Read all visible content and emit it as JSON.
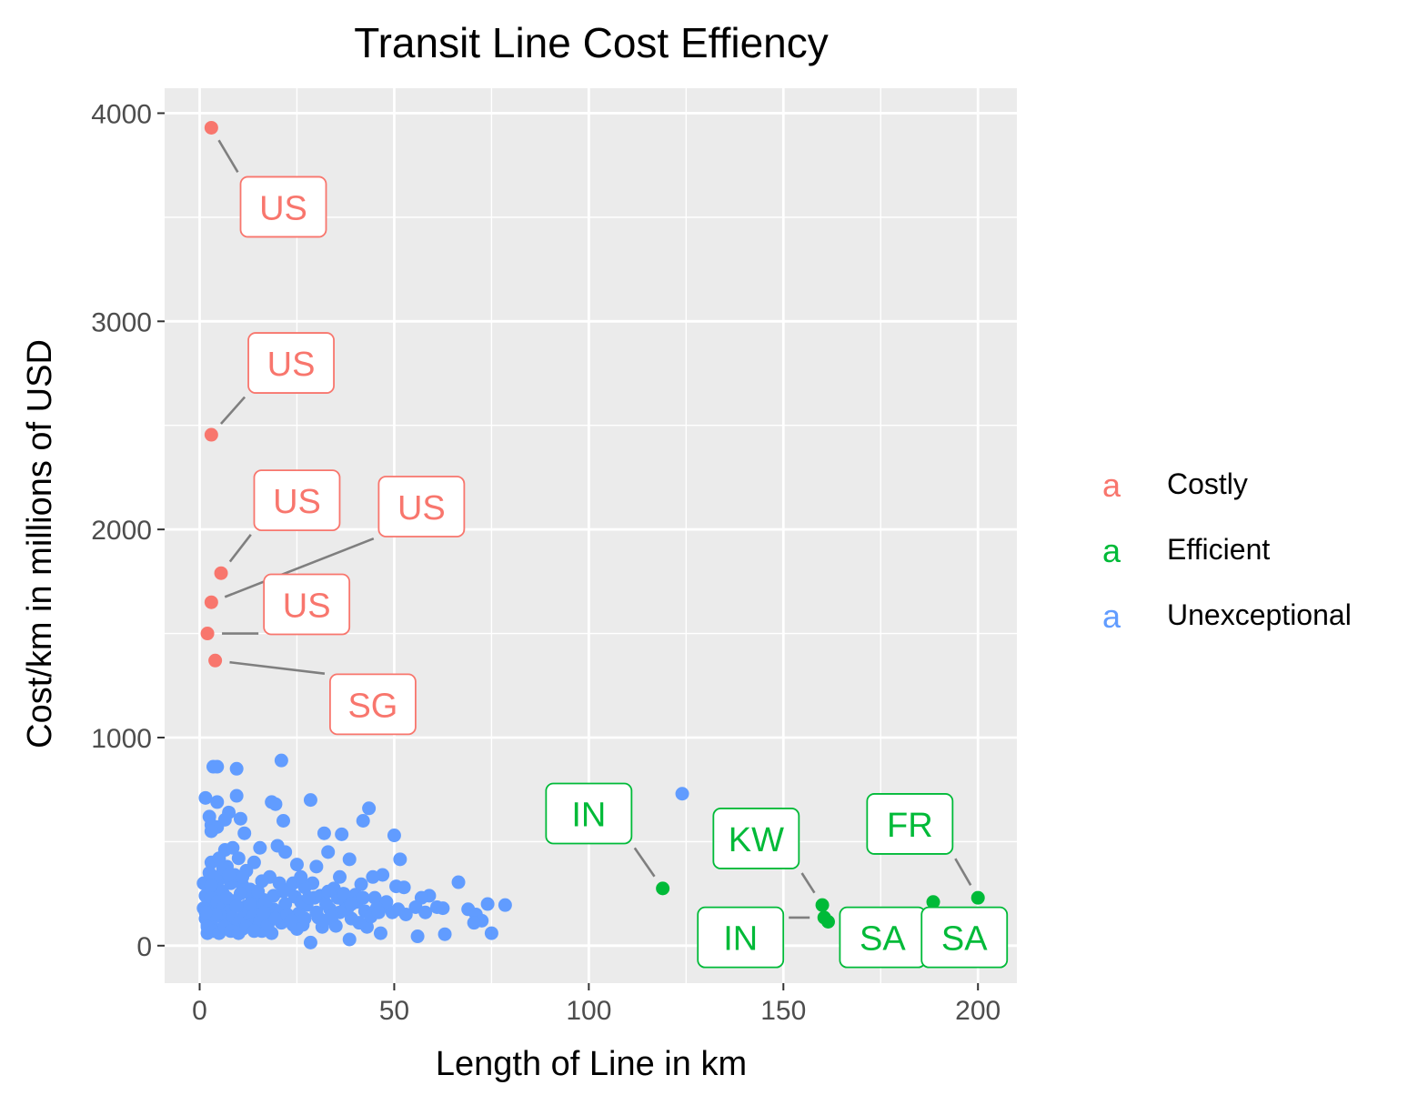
{
  "chart_data": {
    "type": "scatter",
    "title": "Transit Line Cost Effiency",
    "xlabel": "Length of Line in km",
    "ylabel": "Cost/km in millions of USD",
    "xlim": [
      -9,
      210
    ],
    "ylim": [
      -180,
      4120
    ],
    "x_ticks": [
      0,
      50,
      100,
      150,
      200
    ],
    "y_ticks": [
      0,
      1000,
      2000,
      3000,
      4000
    ],
    "grid": true,
    "legend_position": "right",
    "series": [
      {
        "name": "Costly",
        "color": "#F8766D",
        "points": [
          [
            3,
            3930
          ],
          [
            3,
            2455
          ],
          [
            5.5,
            1790
          ],
          [
            3,
            1650
          ],
          [
            2,
            1500
          ],
          [
            4,
            1370
          ]
        ]
      },
      {
        "name": "Efficient",
        "color": "#00BA38",
        "points": [
          [
            119,
            275
          ],
          [
            160,
            195
          ],
          [
            160.5,
            135
          ],
          [
            161.5,
            115
          ],
          [
            188.5,
            210
          ],
          [
            200,
            230
          ]
        ]
      },
      {
        "name": "Unexceptional",
        "color": "#619CFF",
        "points": [
          [
            124,
            730
          ],
          [
            21,
            890
          ],
          [
            3.5,
            860
          ],
          [
            4.5,
            860
          ],
          [
            9.5,
            850
          ],
          [
            9.5,
            720
          ],
          [
            1.5,
            710
          ],
          [
            4.5,
            690
          ],
          [
            18.5,
            690
          ],
          [
            19.5,
            680
          ],
          [
            28.5,
            700
          ],
          [
            43.5,
            660
          ],
          [
            7.5,
            640
          ],
          [
            2.5,
            620
          ],
          [
            10.5,
            610
          ],
          [
            6.5,
            605
          ],
          [
            21.5,
            600
          ],
          [
            42,
            600
          ],
          [
            3,
            580
          ],
          [
            4.5,
            570
          ],
          [
            3,
            550
          ],
          [
            11.5,
            540
          ],
          [
            32,
            540
          ],
          [
            36.5,
            535
          ],
          [
            50,
            530
          ],
          [
            20,
            480
          ],
          [
            15.5,
            470
          ],
          [
            33,
            450
          ],
          [
            22,
            450
          ],
          [
            6.5,
            460
          ],
          [
            8.5,
            470
          ],
          [
            51.5,
            415
          ],
          [
            10,
            420
          ],
          [
            38.5,
            415
          ],
          [
            3,
            400
          ],
          [
            14,
            400
          ],
          [
            25,
            390
          ],
          [
            30,
            380
          ],
          [
            7,
            380
          ],
          [
            47,
            340
          ],
          [
            44.5,
            330
          ],
          [
            36,
            330
          ],
          [
            18,
            330
          ],
          [
            5,
            320
          ],
          [
            1,
            300
          ],
          [
            29,
            300
          ],
          [
            66.5,
            305
          ],
          [
            20.5,
            300
          ],
          [
            41.5,
            295
          ],
          [
            50.5,
            285
          ],
          [
            11,
            290
          ],
          [
            52.5,
            280
          ],
          [
            27,
            280
          ],
          [
            34.5,
            275
          ],
          [
            13,
            270
          ],
          [
            59,
            240
          ],
          [
            57,
            230
          ],
          [
            6,
            250
          ],
          [
            74,
            200
          ],
          [
            78.5,
            195
          ],
          [
            61,
            185
          ],
          [
            62.5,
            180
          ],
          [
            69,
            175
          ],
          [
            55.5,
            185
          ],
          [
            47.5,
            190
          ],
          [
            16.5,
            220
          ],
          [
            24.5,
            235
          ],
          [
            31,
            240
          ],
          [
            40,
            245
          ],
          [
            45,
            230
          ],
          [
            9,
            215
          ],
          [
            2.5,
            200
          ],
          [
            22,
            200
          ],
          [
            37.5,
            205
          ],
          [
            27.5,
            195
          ],
          [
            8.5,
            190
          ],
          [
            14.5,
            180
          ],
          [
            19,
            175
          ],
          [
            33.5,
            175
          ],
          [
            42.5,
            165
          ],
          [
            49.5,
            160
          ],
          [
            53,
            150
          ],
          [
            3.5,
            160
          ],
          [
            25.5,
            155
          ],
          [
            11.5,
            150
          ],
          [
            17.5,
            140
          ],
          [
            30.5,
            135
          ],
          [
            39,
            130
          ],
          [
            71,
            150
          ],
          [
            72.5,
            120
          ],
          [
            70.5,
            110
          ],
          [
            1.5,
            130
          ],
          [
            6.5,
            120
          ],
          [
            12.5,
            115
          ],
          [
            21,
            110
          ],
          [
            26.5,
            100
          ],
          [
            35,
            95
          ],
          [
            43,
            90
          ],
          [
            75,
            60
          ],
          [
            63,
            55
          ],
          [
            56,
            45
          ],
          [
            46.5,
            60
          ],
          [
            38.5,
            30
          ],
          [
            28.5,
            15
          ],
          [
            31.5,
            90
          ],
          [
            16,
            70
          ],
          [
            4,
            80
          ],
          [
            9.5,
            85
          ],
          [
            18.5,
            60
          ],
          [
            2,
            60
          ],
          [
            24,
            100
          ],
          [
            44,
            140
          ],
          [
            5,
            270
          ],
          [
            8,
            300
          ],
          [
            10.5,
            250
          ],
          [
            13.5,
            230
          ],
          [
            15,
            260
          ],
          [
            17,
            210
          ],
          [
            23,
            270
          ],
          [
            26,
            210
          ],
          [
            29.5,
            230
          ],
          [
            32.5,
            200
          ],
          [
            35.5,
            230
          ],
          [
            38,
            180
          ],
          [
            40.5,
            210
          ],
          [
            1.5,
            240
          ],
          [
            3,
            230
          ],
          [
            4.5,
            210
          ],
          [
            6,
            180
          ],
          [
            7.5,
            160
          ],
          [
            12,
            190
          ],
          [
            14,
            150
          ],
          [
            20,
            160
          ],
          [
            36,
            160
          ],
          [
            48,
            210
          ],
          [
            2,
            100
          ],
          [
            3,
            120
          ],
          [
            5.5,
            140
          ],
          [
            7,
            100
          ],
          [
            8.5,
            135
          ],
          [
            10,
            110
          ],
          [
            11,
            80
          ],
          [
            13,
            100
          ],
          [
            15.5,
            120
          ],
          [
            17.5,
            100
          ],
          [
            19.5,
            130
          ],
          [
            22.5,
            150
          ],
          [
            27,
            130
          ],
          [
            32,
            120
          ],
          [
            34,
            140
          ],
          [
            41,
            110
          ],
          [
            45.5,
            180
          ],
          [
            1,
            180
          ],
          [
            2.5,
            350
          ],
          [
            4,
            330
          ],
          [
            6,
            370
          ],
          [
            9,
            340
          ],
          [
            12,
            360
          ],
          [
            16,
            310
          ],
          [
            24,
            300
          ],
          [
            2,
            90
          ],
          [
            3.5,
            70
          ],
          [
            5,
            60
          ],
          [
            6.5,
            90
          ],
          [
            8,
            70
          ],
          [
            10,
            60
          ],
          [
            12,
            90
          ],
          [
            14,
            70
          ],
          [
            25,
            80
          ],
          [
            30,
            160
          ],
          [
            37,
            250
          ],
          [
            42,
            230
          ],
          [
            3,
            290
          ],
          [
            7,
            230
          ],
          [
            11,
            330
          ],
          [
            19,
            240
          ],
          [
            21.5,
            260
          ],
          [
            26,
            330
          ],
          [
            5,
            420
          ],
          [
            7.5,
            340
          ],
          [
            13,
            200
          ],
          [
            28,
            230
          ],
          [
            33,
            260
          ],
          [
            39,
            200
          ],
          [
            46,
            160
          ],
          [
            51,
            175
          ],
          [
            58,
            160
          ],
          [
            4,
            150
          ],
          [
            1.5,
            160
          ],
          [
            9.5,
            190
          ],
          [
            16.5,
            160
          ],
          [
            23.5,
            120
          ]
        ]
      }
    ],
    "labels": [
      {
        "text": "US",
        "series": "Costly",
        "point": [
          3,
          3930
        ],
        "label_at": [
          21.5,
          3550
        ]
      },
      {
        "text": "US",
        "series": "Costly",
        "point": [
          3,
          2455
        ],
        "label_at": [
          23.5,
          2800
        ]
      },
      {
        "text": "US",
        "series": "Costly",
        "point": [
          5.5,
          1790
        ],
        "label_at": [
          25,
          2140
        ]
      },
      {
        "text": "US",
        "series": "Costly",
        "point": [
          3,
          1650
        ],
        "label_at": [
          57,
          2110
        ]
      },
      {
        "text": "US",
        "series": "Costly",
        "point": [
          2,
          1500
        ],
        "label_at": [
          27.5,
          1640
        ]
      },
      {
        "text": "SG",
        "series": "Costly",
        "point": [
          4,
          1370
        ],
        "label_at": [
          44.5,
          1160
        ]
      },
      {
        "text": "IN",
        "series": "Efficient",
        "point": [
          119,
          275
        ],
        "label_at": [
          100,
          635
        ]
      },
      {
        "text": "KW",
        "series": "Efficient",
        "point": [
          160,
          195
        ],
        "label_at": [
          143,
          515
        ]
      },
      {
        "text": "IN",
        "series": "Efficient",
        "point": [
          160.5,
          135
        ],
        "label_at": [
          139,
          40
        ]
      },
      {
        "text": "SA",
        "series": "Efficient",
        "point": [
          188.5,
          210
        ],
        "label_at": [
          175.5,
          40
        ]
      },
      {
        "text": "SA",
        "series": "Efficient",
        "point": [
          200,
          230
        ],
        "label_at": [
          196.5,
          40
        ]
      },
      {
        "text": "FR",
        "series": "Efficient",
        "point": [
          200,
          230
        ],
        "label_at": [
          182.5,
          585
        ]
      }
    ],
    "legend": {
      "key_glyph": "a"
    }
  }
}
